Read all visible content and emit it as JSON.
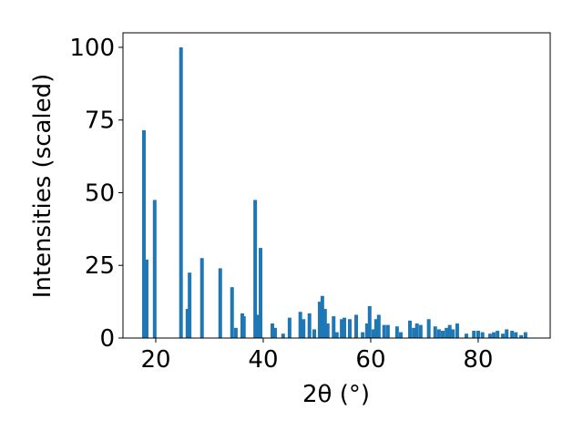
{
  "chart_data": {
    "type": "bar",
    "xlabel": "2θ (°)",
    "ylabel": "Intensities (scaled)",
    "color": "#1f77b4",
    "x": [
      17.8,
      18.3,
      19.8,
      24.7,
      25.9,
      26.3,
      28.6,
      32.0,
      34.2,
      34.9,
      36.1,
      36.4,
      38.5,
      39.0,
      39.5,
      41.7,
      42.2,
      43.7,
      44.9,
      46.9,
      47.5,
      48.6,
      49.5,
      50.5,
      51.0,
      51.5,
      52.0,
      53.1,
      53.7,
      54.6,
      55.1,
      56.1,
      57.3,
      58.5,
      59.3,
      59.8,
      60.5,
      61.0,
      61.5,
      62.5,
      63.2,
      64.9,
      65.6,
      67.3,
      68.0,
      68.6,
      69.3,
      70.8,
      72.0,
      72.7,
      73.4,
      74.1,
      74.7,
      75.3,
      76.1,
      77.8,
      79.2,
      80.0,
      80.8,
      82.2,
      82.9,
      83.6,
      84.6,
      85.3,
      86.3,
      87.0,
      88.0,
      88.8
    ],
    "values": [
      71.5,
      27,
      47.5,
      100,
      10,
      22.5,
      27.5,
      24,
      17.5,
      3.5,
      8.5,
      7.5,
      47.5,
      8,
      31,
      5,
      3.5,
      1.5,
      7,
      9,
      6.5,
      8.5,
      3,
      12.5,
      14.5,
      10,
      5,
      7.5,
      2,
      6.5,
      7,
      6.5,
      8,
      2,
      5,
      11,
      3,
      6.5,
      8,
      4.5,
      4.5,
      4,
      2,
      6,
      3.5,
      5,
      4.5,
      6.5,
      4,
      3,
      2.5,
      3.5,
      4.5,
      3,
      5,
      1.5,
      2.5,
      2.5,
      2,
      1.5,
      2,
      2.5,
      1.5,
      3,
      2.5,
      2,
      1,
      2
    ],
    "xlim": [
      13.9,
      93.4
    ],
    "xticks": [
      20,
      40,
      60,
      80
    ],
    "ylim": [
      0,
      105
    ],
    "yticks": [
      0,
      25,
      50,
      75,
      100
    ]
  }
}
